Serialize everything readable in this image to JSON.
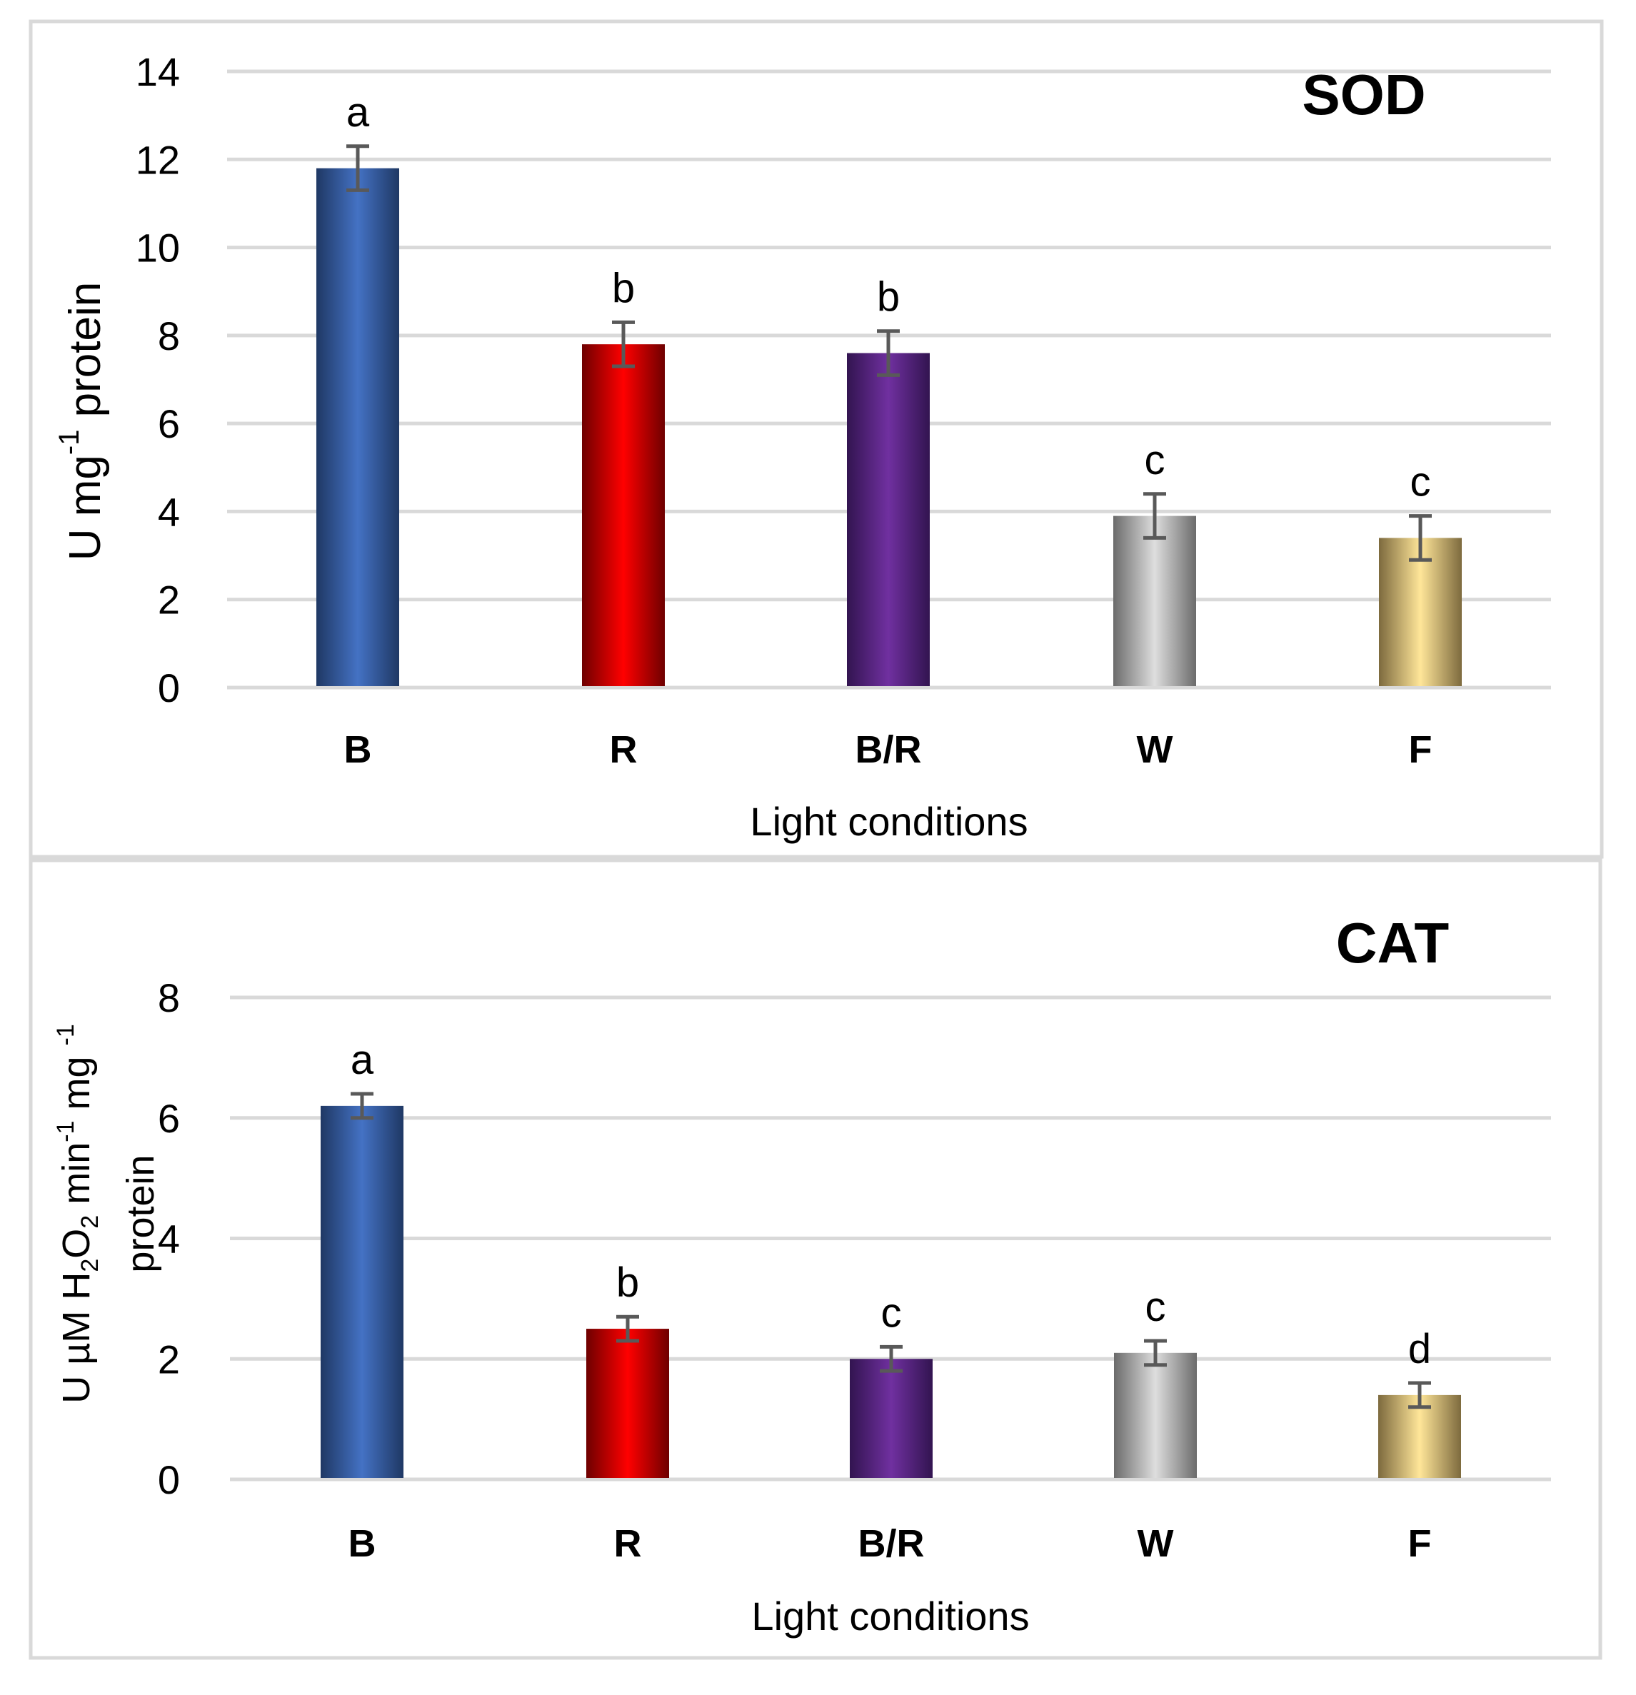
{
  "chart_data": [
    {
      "type": "bar",
      "title": "SOD",
      "xlabel": "Light conditions",
      "ylabel_main": "U mg",
      "ylabel_sup": "-1",
      "ylabel_tail": " protein",
      "categories": [
        "B",
        "R",
        "B/R",
        "W",
        "F"
      ],
      "values": [
        11.8,
        7.8,
        7.6,
        3.9,
        3.4
      ],
      "errors": [
        0.5,
        0.5,
        0.5,
        0.5,
        0.5
      ],
      "significance": [
        "a",
        "b",
        "b",
        "c",
        "c"
      ],
      "colors": [
        "#4472c4",
        "#ff0000",
        "#7030a0",
        "#d9d9d9",
        "#ffe699"
      ],
      "ylim": [
        0,
        14
      ],
      "yticks": [
        "0",
        "2",
        "4",
        "6",
        "8",
        "10",
        "12",
        "14"
      ],
      "grid": true
    },
    {
      "type": "bar",
      "title": "CAT",
      "xlabel": "Light conditions",
      "ylabel_line1_a": "U µM H",
      "ylabel_line1_sub1": "2",
      "ylabel_line1_b": "O",
      "ylabel_line1_sub2": "2",
      "ylabel_line1_c": " min",
      "ylabel_line1_sup1": "-1",
      "ylabel_line1_d": " mg ",
      "ylabel_line1_sup2": "-1",
      "ylabel_line2": "protein",
      "categories": [
        "B",
        "R",
        "B/R",
        "W",
        "F"
      ],
      "values": [
        6.2,
        2.5,
        2.0,
        2.1,
        1.4
      ],
      "errors": [
        0.2,
        0.2,
        0.2,
        0.2,
        0.2
      ],
      "significance": [
        "a",
        "b",
        "c",
        "c",
        "d"
      ],
      "colors": [
        "#4472c4",
        "#ff0000",
        "#7030a0",
        "#d9d9d9",
        "#ffe699"
      ],
      "ylim": [
        0,
        8
      ],
      "yticks": [
        "0",
        "2",
        "4",
        "6",
        "8"
      ],
      "grid": true
    }
  ]
}
